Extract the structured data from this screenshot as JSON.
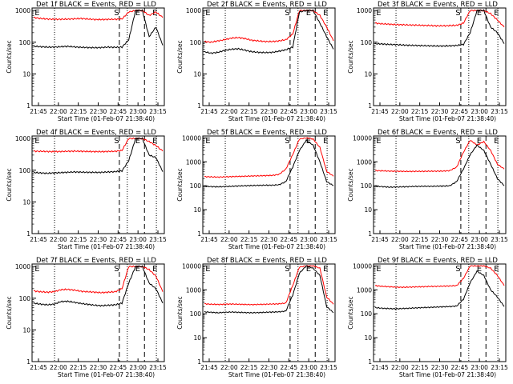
{
  "chart_data": [
    {
      "type": "line",
      "title": "Det 1f BLACK = Events, RED = LLD",
      "xlabel": "Start Time (01-Feb-07 21:38:40)",
      "ylabel": "Counts/sec",
      "x_ticks": [
        "21:45",
        "22:00",
        "22:15",
        "22:30",
        "22:45",
        "23:00",
        "23:15"
      ],
      "y_ticks": [
        "1",
        "10",
        "100",
        "1000"
      ],
      "ylim": [
        1,
        1200
      ],
      "yscale": "log",
      "markers": [
        "E",
        "S",
        "E",
        "E"
      ],
      "series": [
        {
          "color": "#ff0000",
          "values": [
            600,
            560,
            540,
            530,
            530,
            535,
            545,
            560,
            540,
            520,
            520,
            525,
            530,
            540,
            900,
            1000,
            1000,
            700,
            900,
            600
          ]
        },
        {
          "color": "#000000",
          "values": [
            75,
            72,
            70,
            70,
            72,
            74,
            71,
            69,
            68,
            67,
            68,
            70,
            69,
            70,
            120,
            1000,
            1000,
            150,
            300,
            80
          ]
        }
      ]
    },
    {
      "type": "line",
      "title": "Det 2f BLACK = Events, RED = LLD",
      "xlabel": "Start Time (01-Feb-07 21:38:40)",
      "ylabel": "Counts/sec",
      "x_ticks": [
        "21:45",
        "22:00",
        "22:15",
        "22:30",
        "22:45",
        "23:00",
        "23:15"
      ],
      "y_ticks": [
        "1",
        "10",
        "100",
        "1000"
      ],
      "ylim": [
        1,
        1200
      ],
      "yscale": "log",
      "markers": [
        "E",
        "S",
        "E",
        "E"
      ],
      "series": [
        {
          "color": "#ff0000",
          "values": [
            105,
            100,
            110,
            120,
            135,
            140,
            130,
            115,
            110,
            105,
            105,
            110,
            120,
            180,
            1000,
            1000,
            1000,
            700,
            300,
            110
          ]
        },
        {
          "color": "#000000",
          "values": [
            50,
            45,
            48,
            55,
            60,
            62,
            56,
            50,
            48,
            47,
            48,
            52,
            58,
            70,
            900,
            1000,
            1000,
            400,
            150,
            60
          ]
        }
      ]
    },
    {
      "type": "line",
      "title": "Det 3f BLACK = Events, RED = LLD",
      "xlabel": "Start Time (01-Feb-07 21:38:40)",
      "ylabel": "Counts/sec",
      "x_ticks": [
        "21:45",
        "22:00",
        "22:15",
        "22:30",
        "22:45",
        "23:00",
        "23:15"
      ],
      "y_ticks": [
        "1",
        "10",
        "100",
        "1000"
      ],
      "ylim": [
        1,
        1200
      ],
      "yscale": "log",
      "markers": [
        "E",
        "S",
        "E",
        "E"
      ],
      "series": [
        {
          "color": "#ff0000",
          "values": [
            400,
            380,
            370,
            360,
            355,
            350,
            345,
            340,
            335,
            330,
            330,
            335,
            340,
            400,
            1000,
            1000,
            1000,
            800,
            500,
            300
          ]
        },
        {
          "color": "#000000",
          "values": [
            90,
            88,
            85,
            84,
            82,
            80,
            79,
            78,
            77,
            76,
            76,
            77,
            79,
            85,
            200,
            1000,
            1000,
            300,
            200,
            90
          ]
        }
      ]
    },
    {
      "type": "line",
      "title": "Det 4f BLACK = Events, RED = LLD",
      "xlabel": "Start Time (01-Feb-07 21:38:40)",
      "ylabel": "Counts/sec",
      "x_ticks": [
        "21:45",
        "22:00",
        "22:15",
        "22:30",
        "22:45",
        "23:00",
        "23:15"
      ],
      "y_ticks": [
        "1",
        "10",
        "100",
        "1000"
      ],
      "ylim": [
        1,
        1200
      ],
      "yscale": "log",
      "markers": [
        "E",
        "S",
        "E",
        "E"
      ],
      "series": [
        {
          "color": "#ff0000",
          "values": [
            400,
            395,
            390,
            385,
            390,
            395,
            400,
            395,
            390,
            385,
            385,
            390,
            395,
            420,
            1000,
            1000,
            1000,
            800,
            600,
            400
          ]
        },
        {
          "color": "#000000",
          "values": [
            85,
            82,
            80,
            82,
            84,
            86,
            88,
            87,
            86,
            85,
            86,
            88,
            90,
            95,
            200,
            1000,
            1000,
            300,
            250,
            90
          ]
        }
      ]
    },
    {
      "type": "line",
      "title": "Det 5f BLACK = Events, RED = LLD",
      "xlabel": "Start Time (01-Feb-07 21:38:40)",
      "ylabel": "Counts/sec",
      "x_ticks": [
        "21:45",
        "22:00",
        "22:15",
        "22:30",
        "22:45",
        "23:00",
        "23:15"
      ],
      "y_ticks": [
        "1",
        "10",
        "100",
        "1000",
        "10000"
      ],
      "ylim": [
        1,
        12000
      ],
      "yscale": "log",
      "markers": [
        "E",
        "S",
        "E",
        "E"
      ],
      "series": [
        {
          "color": "#ff0000",
          "values": [
            240,
            235,
            230,
            235,
            240,
            245,
            250,
            255,
            260,
            265,
            270,
            300,
            500,
            2000,
            9000,
            10000,
            9000,
            4000,
            400,
            250
          ]
        },
        {
          "color": "#000000",
          "values": [
            95,
            92,
            90,
            92,
            95,
            98,
            100,
            102,
            104,
            105,
            106,
            110,
            150,
            600,
            3000,
            8000,
            5000,
            1000,
            150,
            100
          ]
        }
      ]
    },
    {
      "type": "line",
      "title": "Det 6f BLACK = Events, RED = LLD",
      "xlabel": "Start Time (01-Feb-07 21:38:40)",
      "ylabel": "Counts/sec",
      "x_ticks": [
        "21:45",
        "22:00",
        "22:15",
        "22:30",
        "22:45",
        "23:00",
        "23:15"
      ],
      "y_ticks": [
        "1",
        "10",
        "100",
        "1000",
        "10000"
      ],
      "ylim": [
        1,
        12000
      ],
      "yscale": "log",
      "markers": [
        "E",
        "S",
        "E",
        "E"
      ],
      "series": [
        {
          "color": "#ff0000",
          "values": [
            430,
            420,
            410,
            405,
            400,
            398,
            400,
            402,
            405,
            408,
            410,
            430,
            600,
            2500,
            8000,
            5000,
            7000,
            3000,
            800,
            500
          ]
        },
        {
          "color": "#000000",
          "values": [
            95,
            92,
            88,
            88,
            90,
            92,
            94,
            95,
            95,
            96,
            97,
            100,
            150,
            500,
            2000,
            5000,
            3000,
            800,
            200,
            100
          ]
        }
      ]
    },
    {
      "type": "line",
      "title": "Det 7f BLACK = Events, RED = LLD",
      "xlabel": "Start Time (01-Feb-07 21:38:40)",
      "ylabel": "Counts/sec",
      "x_ticks": [
        "21:45",
        "22:00",
        "22:15",
        "22:30",
        "22:45",
        "23:00",
        "23:15"
      ],
      "y_ticks": [
        "1",
        "10",
        "100",
        "1000"
      ],
      "ylim": [
        1,
        1200
      ],
      "yscale": "log",
      "markers": [
        "E",
        "S",
        "E",
        "E"
      ],
      "series": [
        {
          "color": "#ff0000",
          "values": [
            170,
            160,
            155,
            160,
            185,
            190,
            180,
            165,
            160,
            155,
            150,
            155,
            160,
            200,
            1000,
            1000,
            1000,
            800,
            500,
            160
          ]
        },
        {
          "color": "#000000",
          "values": [
            70,
            65,
            62,
            65,
            78,
            80,
            74,
            68,
            64,
            60,
            58,
            60,
            62,
            70,
            300,
            1000,
            1000,
            300,
            200,
            70
          ]
        }
      ]
    },
    {
      "type": "line",
      "title": "Det 8f BLACK = Events, RED = LLD",
      "xlabel": "Start Time (01-Feb-07 21:38:40)",
      "ylabel": "Counts/sec",
      "x_ticks": [
        "21:45",
        "22:00",
        "22:15",
        "22:30",
        "22:45",
        "23:00",
        "23:15"
      ],
      "y_ticks": [
        "1",
        "10",
        "100",
        "1000",
        "10000"
      ],
      "ylim": [
        1,
        12000
      ],
      "yscale": "log",
      "markers": [
        "E",
        "S",
        "E",
        "E"
      ],
      "series": [
        {
          "color": "#ff0000",
          "values": [
            260,
            250,
            245,
            250,
            255,
            250,
            245,
            240,
            245,
            250,
            255,
            260,
            280,
            1500,
            9000,
            10000,
            10000,
            8000,
            500,
            250
          ]
        },
        {
          "color": "#000000",
          "values": [
            120,
            115,
            110,
            115,
            118,
            115,
            112,
            110,
            112,
            115,
            118,
            120,
            130,
            600,
            5000,
            10000,
            8000,
            4000,
            200,
            110
          ]
        }
      ]
    },
    {
      "type": "line",
      "title": "Det 9f BLACK = Events, RED = LLD",
      "xlabel": "Start Time (01-Feb-07 21:38:40)",
      "ylabel": "Counts/sec",
      "x_ticks": [
        "21:45",
        "22:00",
        "22:15",
        "22:30",
        "22:45",
        "23:00",
        "23:15"
      ],
      "y_ticks": [
        "1",
        "10",
        "100",
        "1000",
        "10000"
      ],
      "ylim": [
        1,
        12000
      ],
      "yscale": "log",
      "markers": [
        "E",
        "S",
        "E",
        "E"
      ],
      "series": [
        {
          "color": "#ff0000",
          "values": [
            1500,
            1400,
            1350,
            1300,
            1280,
            1300,
            1320,
            1350,
            1380,
            1400,
            1420,
            1450,
            1500,
            3000,
            10000,
            10000,
            10000,
            8000,
            4000,
            1500
          ]
        },
        {
          "color": "#000000",
          "values": [
            180,
            170,
            165,
            160,
            165,
            170,
            175,
            180,
            185,
            190,
            195,
            200,
            210,
            400,
            2000,
            6000,
            4000,
            1000,
            500,
            200
          ]
        }
      ]
    }
  ]
}
